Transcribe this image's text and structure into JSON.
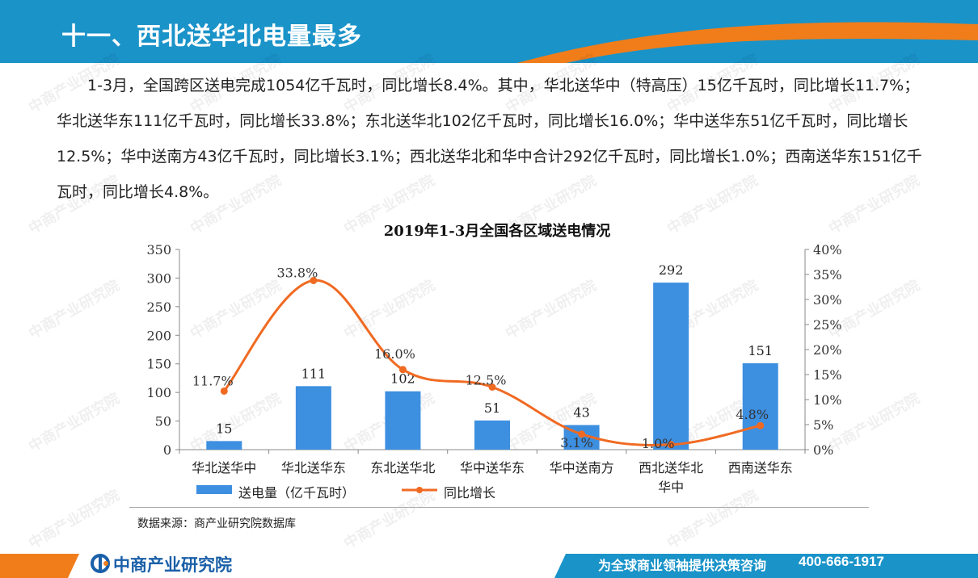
{
  "header": {
    "title": "十一、西北送华北电量最多"
  },
  "intro": {
    "text": "1-3月，全国跨区送电完成1054亿千瓦时，同比增长8.4%。其中，华北送华中（特高压）15亿千瓦时，同比增长11.7%；华北送华东111亿千瓦时，同比增长33.8%；东北送华北102亿千瓦时，同比增长16.0%；华中送华东51亿千瓦时，同比增长12.5%；华中送南方43亿千瓦时，同比增长3.1%；西北送华北和华中合计292亿千瓦时，同比增长1.0%；西南送华东151亿千瓦时，同比增长4.8%。"
  },
  "source": {
    "text": "数据来源：商产业研究院数据库"
  },
  "footer": {
    "logo": "中商产业研究院",
    "slogan": "为全球商业领袖提供决策咨询",
    "phone": "400-666-1917"
  },
  "watermark": {
    "text": "中商产业研究院"
  },
  "colors": {
    "header": "#1a93c9",
    "accent": "#f07d1a",
    "bar": "#3d8fe0",
    "line": "#f06a22",
    "logo": "#1a5fa8"
  },
  "chart_data": {
    "type": "bar",
    "title": "2019年1-3月全国各区域送电情况",
    "categories": [
      "华北送华中",
      "华北送华东",
      "东北送华北",
      "华中送华东",
      "华中送南方",
      "西北送华北\n华中",
      "西南送华东"
    ],
    "series": [
      {
        "name": "送电量（亿千瓦时）",
        "type": "bar",
        "axis": "left",
        "values": [
          15,
          111,
          102,
          51,
          43,
          292,
          151
        ],
        "labels": [
          "15",
          "111",
          "102",
          "51",
          "43",
          "292",
          "151"
        ]
      },
      {
        "name": "同比增长",
        "type": "line",
        "axis": "right",
        "values": [
          11.7,
          33.8,
          16.0,
          12.5,
          3.1,
          1.0,
          4.8
        ],
        "labels": [
          "11.7%",
          "33.8%",
          "16.0%",
          "12.5%",
          "3.1%",
          "1.0%",
          "4.8%"
        ]
      }
    ],
    "y_left": {
      "range": [
        0,
        350
      ],
      "ticks": [
        "0",
        "50",
        "100",
        "150",
        "200",
        "250",
        "300",
        "350"
      ]
    },
    "y_right": {
      "range": [
        0,
        40
      ],
      "ticks": [
        "0%",
        "5%",
        "10%",
        "15%",
        "20%",
        "25%",
        "30%",
        "35%",
        "40%"
      ]
    },
    "grid": false,
    "legend": "bottom-left"
  }
}
